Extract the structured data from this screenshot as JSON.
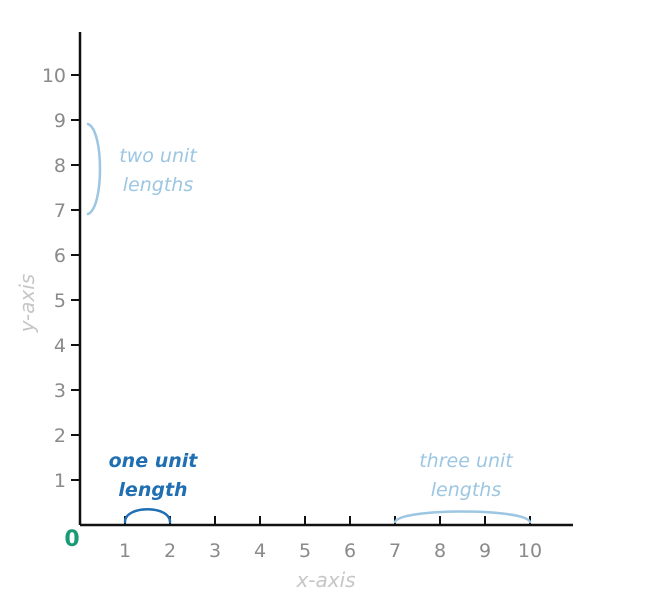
{
  "diagram": {
    "origin_label": "0",
    "x_axis_label": "x-axis",
    "y_axis_label": "y-axis",
    "x_ticks": [
      "1",
      "2",
      "3",
      "4",
      "5",
      "6",
      "7",
      "8",
      "9",
      "10"
    ],
    "y_ticks": [
      "1",
      "2",
      "3",
      "4",
      "5",
      "6",
      "7",
      "8",
      "9",
      "10"
    ],
    "annotations": {
      "one_unit": {
        "line1": "one unit",
        "line2": "length",
        "from": 1,
        "to": 2,
        "axis": "x",
        "color": "#1f6fb2"
      },
      "two_units": {
        "line1": "two unit",
        "line2": "lengths",
        "from": 7,
        "to": 9,
        "axis": "y",
        "color": "#9cc6e2"
      },
      "three_units": {
        "line1": "three unit",
        "line2": "lengths",
        "from": 7,
        "to": 10,
        "axis": "x",
        "color": "#9cc6e2"
      }
    }
  }
}
